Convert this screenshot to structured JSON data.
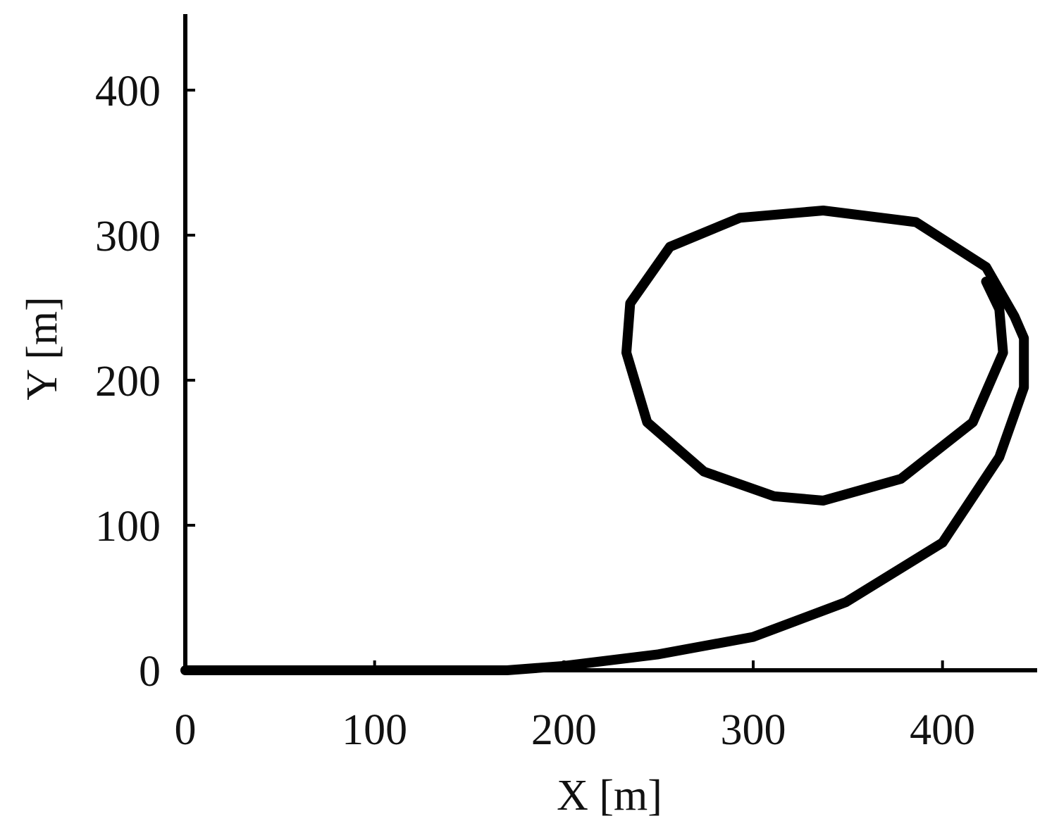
{
  "chart_data": {
    "type": "line",
    "x_label": "X [m]",
    "y_label": "Y [m]",
    "x": [
      0,
      170,
      200,
      250,
      300,
      349,
      400,
      430,
      443,
      443,
      438,
      423,
      386,
      337,
      293,
      256,
      235,
      233,
      244,
      274,
      311,
      337,
      378,
      416,
      432,
      430,
      423
    ],
    "values": [
      0,
      0,
      3,
      11,
      23,
      47,
      88,
      147,
      195,
      229,
      244,
      278,
      309,
      317,
      312,
      292,
      253,
      219,
      171,
      137,
      120,
      117,
      132,
      171,
      219,
      249,
      268
    ],
    "color": "#000000",
    "xlim": [
      0,
      450
    ],
    "ylim": [
      0,
      450
    ],
    "xticks": [
      0,
      100,
      200,
      300,
      400
    ],
    "yticks": [
      0,
      100,
      200,
      300,
      400
    ],
    "grid": false
  }
}
